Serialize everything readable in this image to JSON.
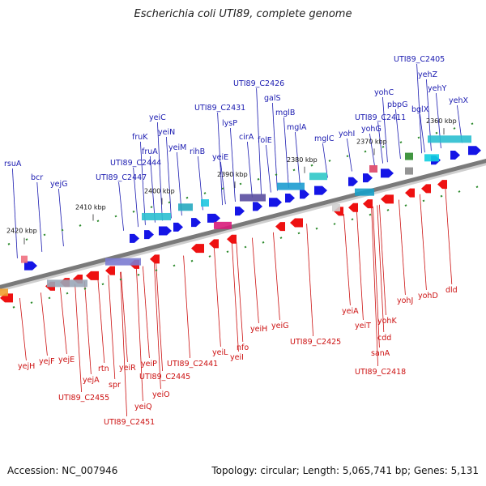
{
  "title": "Escherichia coli UTI89, complete genome",
  "footer": {
    "accession": "Accession: NC_007946",
    "topology": "Topology: circular; Length: 5,065,741 bp; Genes: 5,131"
  },
  "colors": {
    "forward_label": "#1a1ab0",
    "reverse_label": "#cc1111",
    "forward_arrow": "#1515e6",
    "reverse_arrow": "#ee1111",
    "backbone": "#7a7a7a",
    "tick_mark": "#2e8b2e"
  },
  "kbp_ticks": [
    "2420 kbp",
    "2410 kbp",
    "2400 kbp",
    "2390 kbp",
    "2380 kbp",
    "2370 kbp",
    "2360 kbp"
  ],
  "forward_genes": [
    "rsuA",
    "bcr",
    "yejG",
    "UTI89_C2447",
    "fruK",
    "UTI89_C2444",
    "fruA",
    "yeiC",
    "yeiN",
    "yeiM",
    "rihB",
    "UTI89_C2431",
    "yeiE",
    "lysP",
    "UTI89_C2426",
    "cirA",
    "galS",
    "folE",
    "mglB",
    "mglA",
    "mglC",
    "yohI",
    "yohC",
    "UTI89_C2411",
    "yohG",
    "pbpG",
    "UTI89_C2405",
    "bglX",
    "yehZ",
    "yehY",
    "yehX"
  ],
  "reverse_genes": [
    "yejH",
    "yejF",
    "yejE",
    "yejA",
    "UTI89_C2455",
    "rtn",
    "spr",
    "UTI89_C2451",
    "yeiR",
    "yeiQ",
    "yeiP",
    "UTI89_C2445",
    "yeiO",
    "UTI89_C2441",
    "yeiL",
    "yeiI",
    "nfo",
    "yeiH",
    "yeiG",
    "UTI89_C2425",
    "yeiA",
    "yeiT",
    "sanA",
    "cdd",
    "yohK",
    "UTI89_C2418",
    "yohJ",
    "yohD",
    "dld"
  ]
}
